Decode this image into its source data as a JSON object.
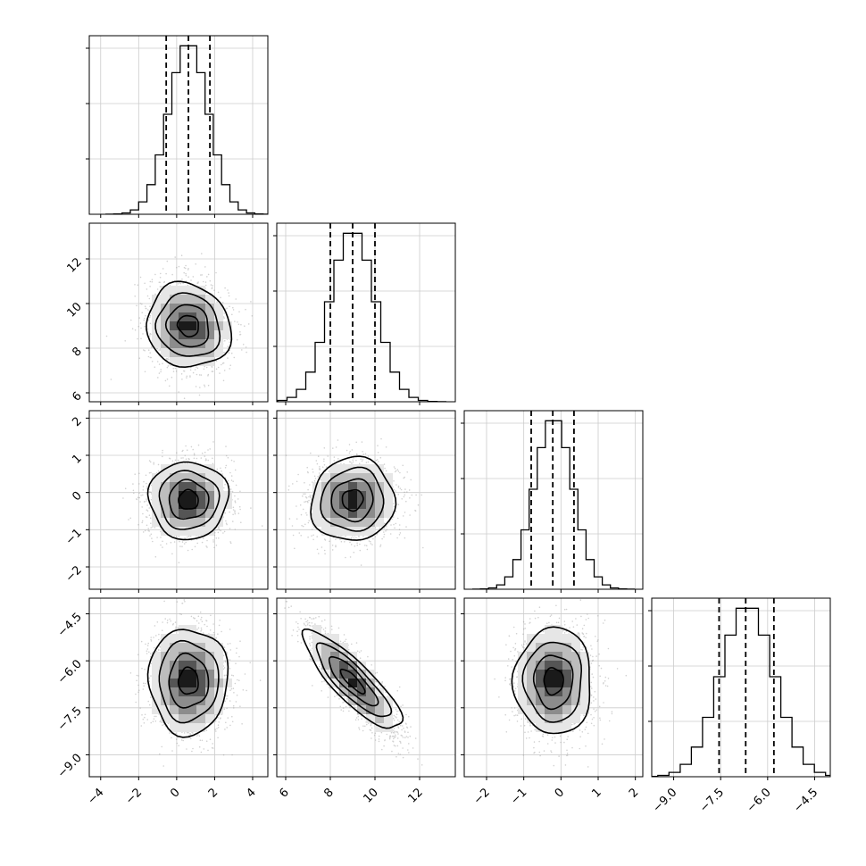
{
  "chart_data": {
    "type": "corner",
    "grid": true,
    "color": "#000000",
    "parameters": [
      {
        "range": [
          -4.6,
          4.8
        ],
        "mean": 0.62,
        "sd": 1.04,
        "quantiles": [
          -0.55,
          0.62,
          1.75
        ],
        "ticks": [
          -4,
          -2,
          0,
          2,
          4
        ],
        "tick_labels": [
          "−4",
          "−2",
          "0",
          "2",
          "4"
        ]
      },
      {
        "range": [
          5.6,
          13.6
        ],
        "mean": 9.0,
        "sd": 1.0,
        "quantiles": [
          8.0,
          9.0,
          10.0
        ],
        "ticks": [
          6,
          8,
          10,
          12
        ],
        "tick_labels": [
          "6",
          "8",
          "10",
          "12"
        ]
      },
      {
        "range": [
          -2.6,
          2.2
        ],
        "mean": -0.2,
        "sd": 0.52,
        "quantiles": [
          -0.8,
          -0.22,
          0.35
        ],
        "ticks": [
          -2,
          -1,
          0,
          1,
          2
        ],
        "tick_labels": [
          "−2",
          "−1",
          "0",
          "1",
          "2"
        ]
      },
      {
        "range": [
          -9.7,
          -4.0
        ],
        "mean": -6.65,
        "sd": 0.85,
        "quantiles": [
          -7.55,
          -6.7,
          -5.8
        ],
        "ticks": [
          -9.0,
          -7.5,
          -6.0,
          -4.5
        ],
        "tick_labels": [
          "−9.0",
          "−7.5",
          "−6.0",
          "−4.5"
        ]
      }
    ],
    "correlations": [
      [
        1,
        -0.1,
        0.0,
        0.0
      ],
      [
        -0.1,
        1,
        0.05,
        -0.85
      ],
      [
        0.0,
        0.05,
        1,
        0.0
      ],
      [
        0.0,
        -0.85,
        0.0,
        1
      ]
    ],
    "histogram_bins": 20,
    "contour_levels": [
      0.5,
      1.0,
      1.5,
      2.0
    ]
  }
}
